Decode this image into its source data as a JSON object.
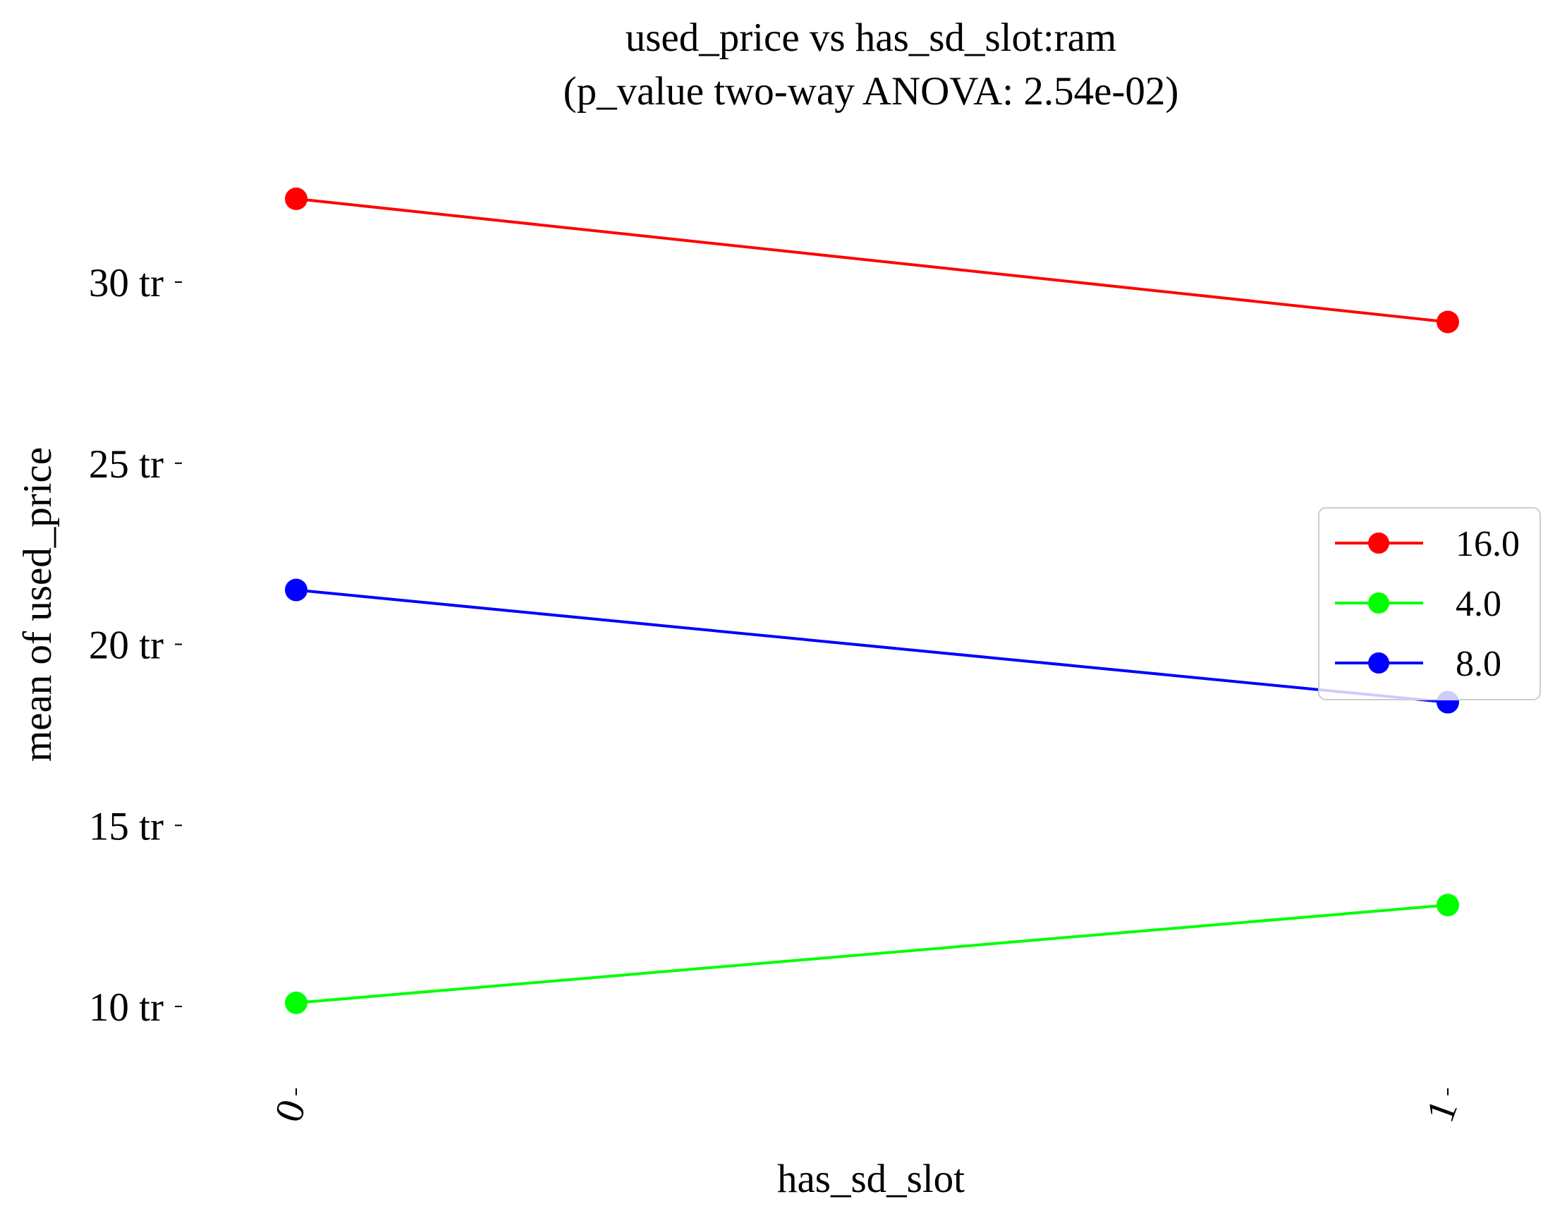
{
  "chart_data": {
    "type": "line",
    "title": "used_price vs has_sd_slot:ram",
    "subtitle": "(p_value two-way ANOVA: 2.54e-02)",
    "xlabel": "has_sd_slot",
    "ylabel": "mean of used_price",
    "categories": [
      "0",
      "1"
    ],
    "y_ticks": [
      {
        "value": 10,
        "label": "10 tr"
      },
      {
        "value": 15,
        "label": "15 tr"
      },
      {
        "value": 20,
        "label": "20 tr"
      },
      {
        "value": 25,
        "label": "25 tr"
      },
      {
        "value": 30,
        "label": "30 tr"
      }
    ],
    "ylim": [
      7.6,
      34.6
    ],
    "grid": false,
    "legend_position": "center-right",
    "series": [
      {
        "name": "16.0",
        "color": "#ff0000",
        "values": [
          32.3,
          28.9
        ]
      },
      {
        "name": "4.0",
        "color": "#00ff00",
        "values": [
          10.1,
          12.8
        ]
      },
      {
        "name": "8.0",
        "color": "#0000ff",
        "values": [
          21.5,
          18.4
        ]
      }
    ]
  }
}
